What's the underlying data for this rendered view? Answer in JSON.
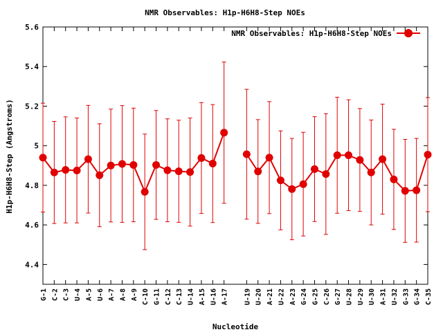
{
  "chart_data": {
    "type": "line",
    "title": "NMR Observables: H1p-H6H8-Step NOEs",
    "xlabel": "Nucleotide",
    "ylabel": "H1p-H6H8-Step (Angstroms)",
    "ylim": [
      4.3,
      5.6
    ],
    "yticks": [
      "4.4",
      "4.6",
      "4.8",
      "5",
      "5.2",
      "5.4",
      "5.6"
    ],
    "grid": false,
    "legend_position": "top-right",
    "series": [
      {
        "name": "NMR Observables: H1p-H6H8-Step NOEs",
        "color": "#e00000",
        "points": [
          {
            "label": "G-1",
            "x": 1,
            "y": 4.94,
            "err": 0.275
          },
          {
            "label": "C-2",
            "x": 2,
            "y": 4.865,
            "err": 0.258
          },
          {
            "label": "C-3",
            "x": 3,
            "y": 4.878,
            "err": 0.268
          },
          {
            "label": "U-4",
            "x": 4,
            "y": 4.875,
            "err": 0.265
          },
          {
            "label": "A-5",
            "x": 5,
            "y": 4.932,
            "err": 0.272
          },
          {
            "label": "U-6",
            "x": 6,
            "y": 4.851,
            "err": 0.26
          },
          {
            "label": "A-7",
            "x": 7,
            "y": 4.9,
            "err": 0.285
          },
          {
            "label": "A-8",
            "x": 8,
            "y": 4.908,
            "err": 0.295
          },
          {
            "label": "A-9",
            "x": 9,
            "y": 4.903,
            "err": 0.287
          },
          {
            "label": "C-10",
            "x": 10,
            "y": 4.767,
            "err": 0.292
          },
          {
            "label": "G-11",
            "x": 11,
            "y": 4.903,
            "err": 0.275
          },
          {
            "label": "C-12",
            "x": 12,
            "y": 4.876,
            "err": 0.26
          },
          {
            "label": "C-13",
            "x": 13,
            "y": 4.871,
            "err": 0.258
          },
          {
            "label": "U-14",
            "x": 14,
            "y": 4.867,
            "err": 0.273
          },
          {
            "label": "A-15",
            "x": 15,
            "y": 4.938,
            "err": 0.28
          },
          {
            "label": "U-16",
            "x": 16,
            "y": 4.91,
            "err": 0.298
          },
          {
            "label": "A-17",
            "x": 17,
            "y": 5.066,
            "err": 0.357
          },
          {
            "label": "U-19",
            "x": 19,
            "y": 4.957,
            "err": 0.328
          },
          {
            "label": "U-20",
            "x": 20,
            "y": 4.87,
            "err": 0.262
          },
          {
            "label": "A-21",
            "x": 21,
            "y": 4.94,
            "err": 0.283
          },
          {
            "label": "U-22",
            "x": 22,
            "y": 4.825,
            "err": 0.25
          },
          {
            "label": "A-23",
            "x": 23,
            "y": 4.781,
            "err": 0.256
          },
          {
            "label": "G-24",
            "x": 24,
            "y": 4.806,
            "err": 0.262
          },
          {
            "label": "G-25",
            "x": 25,
            "y": 4.882,
            "err": 0.265
          },
          {
            "label": "C-26",
            "x": 26,
            "y": 4.857,
            "err": 0.305
          },
          {
            "label": "G-27",
            "x": 27,
            "y": 4.952,
            "err": 0.293
          },
          {
            "label": "U-28",
            "x": 28,
            "y": 4.952,
            "err": 0.28
          },
          {
            "label": "U-29",
            "x": 29,
            "y": 4.928,
            "err": 0.26
          },
          {
            "label": "U-30",
            "x": 30,
            "y": 4.865,
            "err": 0.265
          },
          {
            "label": "A-31",
            "x": 31,
            "y": 4.932,
            "err": 0.278
          },
          {
            "label": "U-32",
            "x": 32,
            "y": 4.83,
            "err": 0.253
          },
          {
            "label": "G-33",
            "x": 33,
            "y": 4.772,
            "err": 0.26
          },
          {
            "label": "G-34",
            "x": 34,
            "y": 4.775,
            "err": 0.262
          },
          {
            "label": "C-35",
            "x": 35,
            "y": 4.955,
            "err": 0.288
          }
        ]
      }
    ]
  }
}
